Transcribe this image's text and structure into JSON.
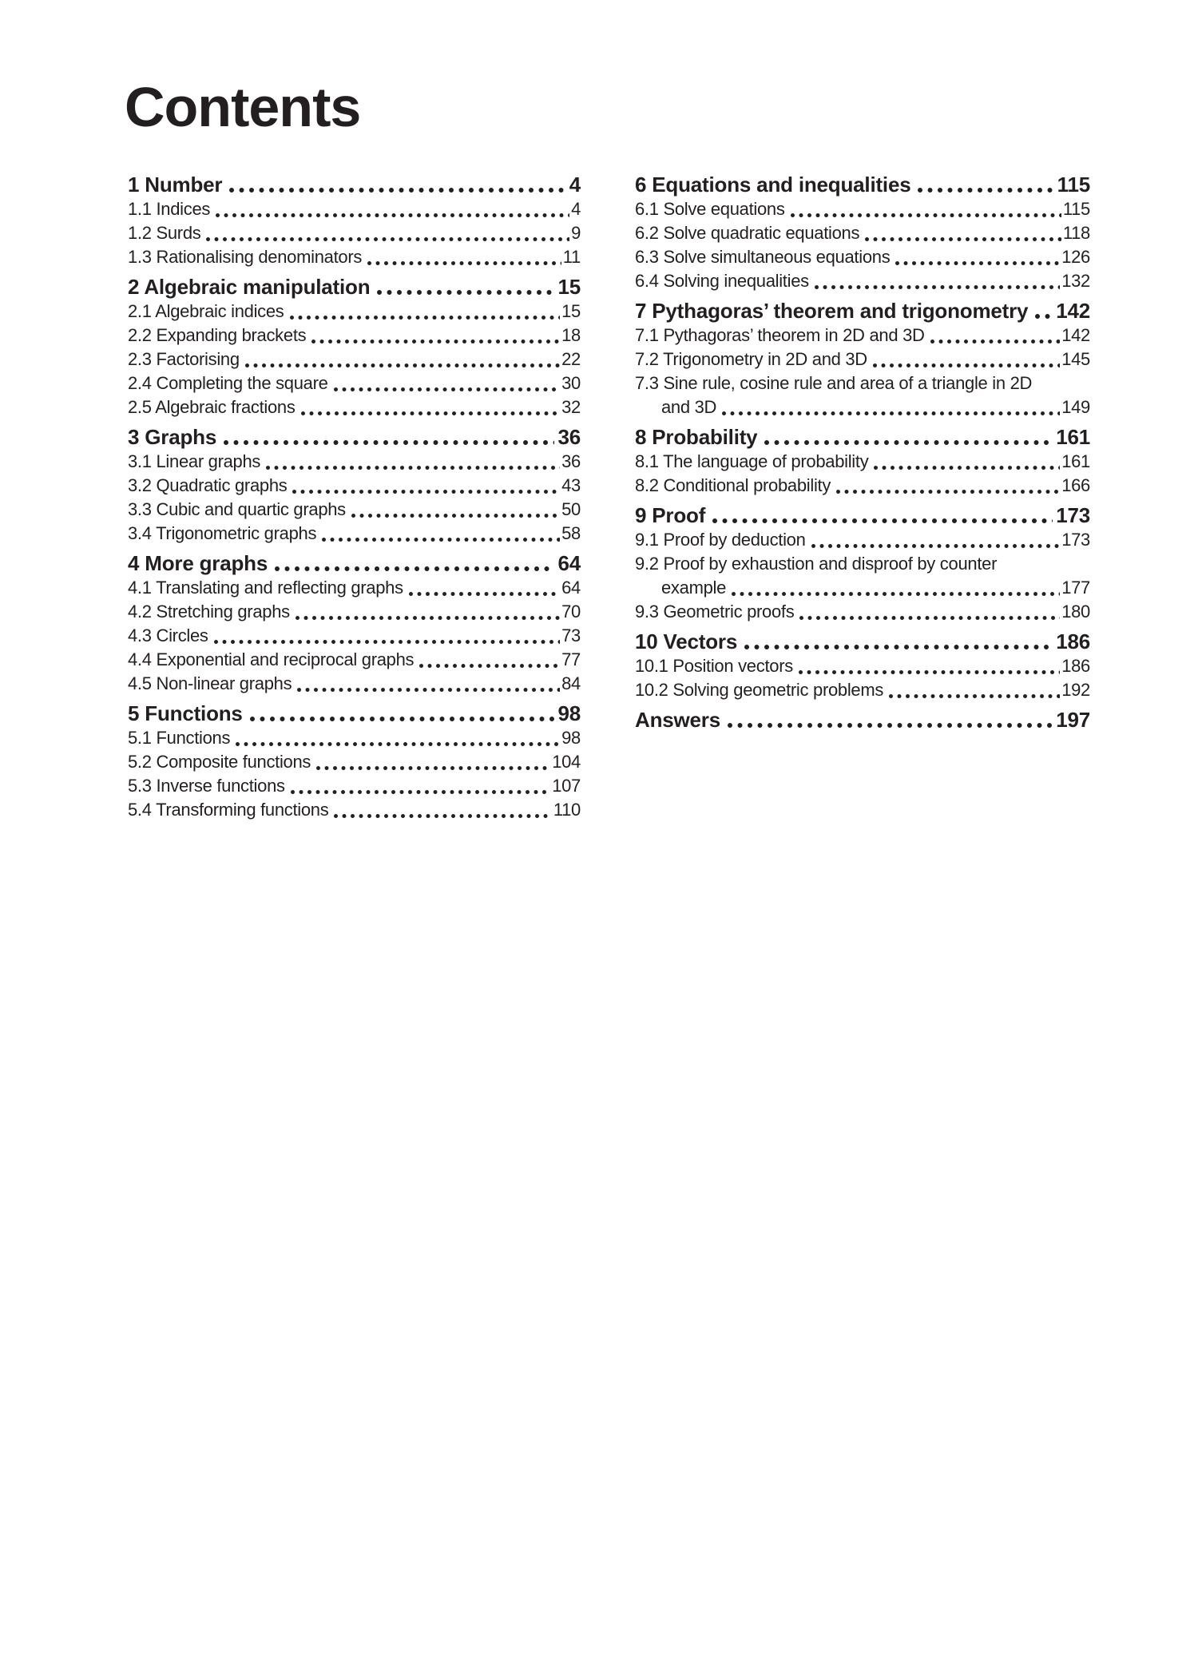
{
  "page_title": "Contents",
  "colors": {
    "text": "#231f20",
    "background": "#ffffff"
  },
  "toc": {
    "left_column": [
      {
        "type": "chapter",
        "label": "1 Number",
        "page": "4"
      },
      {
        "type": "section",
        "label": "1.1 Indices",
        "page": "4"
      },
      {
        "type": "section",
        "label": "1.2 Surds",
        "page": "9"
      },
      {
        "type": "section",
        "label": "1.3 Rationalising denominators",
        "page": "11"
      },
      {
        "type": "chapter",
        "label": "2 Algebraic manipulation",
        "page": "15"
      },
      {
        "type": "section",
        "label": "2.1 Algebraic indices",
        "page": "15"
      },
      {
        "type": "section",
        "label": "2.2 Expanding brackets",
        "page": "18"
      },
      {
        "type": "section",
        "label": "2.3 Factorising",
        "page": "22"
      },
      {
        "type": "section",
        "label": "2.4 Completing the square",
        "page": "30"
      },
      {
        "type": "section",
        "label": "2.5 Algebraic fractions",
        "page": "32"
      },
      {
        "type": "chapter",
        "label": "3 Graphs",
        "page": "36"
      },
      {
        "type": "section",
        "label": "3.1 Linear graphs",
        "page": "36"
      },
      {
        "type": "section",
        "label": "3.2 Quadratic graphs",
        "page": "43"
      },
      {
        "type": "section",
        "label": "3.3 Cubic and quartic graphs",
        "page": "50"
      },
      {
        "type": "section",
        "label": "3.4 Trigonometric graphs",
        "page": "58"
      },
      {
        "type": "chapter",
        "label": "4 More graphs",
        "page": "64"
      },
      {
        "type": "section",
        "label": "4.1 Translating and reflecting graphs",
        "page": "64"
      },
      {
        "type": "section",
        "label": "4.2 Stretching graphs",
        "page": "70"
      },
      {
        "type": "section",
        "label": "4.3 Circles",
        "page": "73"
      },
      {
        "type": "section",
        "label": "4.4 Exponential and reciprocal graphs",
        "page": "77"
      },
      {
        "type": "section",
        "label": "4.5 Non-linear graphs",
        "page": "84"
      },
      {
        "type": "chapter",
        "label": "5 Functions",
        "page": "98"
      },
      {
        "type": "section",
        "label": "5.1 Functions",
        "page": "98"
      },
      {
        "type": "section",
        "label": "5.2 Composite functions",
        "page": "104"
      },
      {
        "type": "section",
        "label": "5.3 Inverse functions",
        "page": "107"
      },
      {
        "type": "section",
        "label": "5.4 Transforming functions",
        "page": "110"
      }
    ],
    "right_column": [
      {
        "type": "chapter",
        "label": "6 Equations and inequalities",
        "page": "115"
      },
      {
        "type": "section",
        "label": "6.1 Solve equations",
        "page": "115"
      },
      {
        "type": "section",
        "label": "6.2 Solve quadratic equations",
        "page": "118"
      },
      {
        "type": "section",
        "label": "6.3 Solve simultaneous equations",
        "page": "126"
      },
      {
        "type": "section",
        "label": "6.4 Solving inequalities",
        "page": "132"
      },
      {
        "type": "chapter",
        "label": "7 Pythagoras’ theorem and trigonometry",
        "page": "142"
      },
      {
        "type": "section",
        "label": "7.1 Pythagoras’ theorem in 2D and 3D",
        "page": "142"
      },
      {
        "type": "section",
        "label": "7.2 Trigonometry in 2D and 3D",
        "page": "145"
      },
      {
        "type": "section2",
        "line1": "7.3 Sine rule, cosine rule and area of a triangle in 2D",
        "line2": "and 3D",
        "page": "149"
      },
      {
        "type": "chapter",
        "label": "8 Probability",
        "page": "161"
      },
      {
        "type": "section",
        "label": "8.1 The language of probability",
        "page": "161"
      },
      {
        "type": "section",
        "label": "8.2 Conditional probability",
        "page": "166"
      },
      {
        "type": "chapter",
        "label": "9 Proof",
        "page": "173"
      },
      {
        "type": "section",
        "label": "9.1 Proof by deduction",
        "page": "173"
      },
      {
        "type": "section2",
        "line1": "9.2 Proof by exhaustion and disproof by counter",
        "line2": "example",
        "page": "177"
      },
      {
        "type": "section",
        "label": "9.3 Geometric proofs",
        "page": "180"
      },
      {
        "type": "chapter",
        "label": "10 Vectors",
        "page": "186"
      },
      {
        "type": "section",
        "label": "10.1 Position vectors",
        "page": "186"
      },
      {
        "type": "section",
        "label": "10.2 Solving geometric problems",
        "page": "192"
      },
      {
        "type": "chapter",
        "label": "Answers",
        "page": "197"
      }
    ]
  }
}
